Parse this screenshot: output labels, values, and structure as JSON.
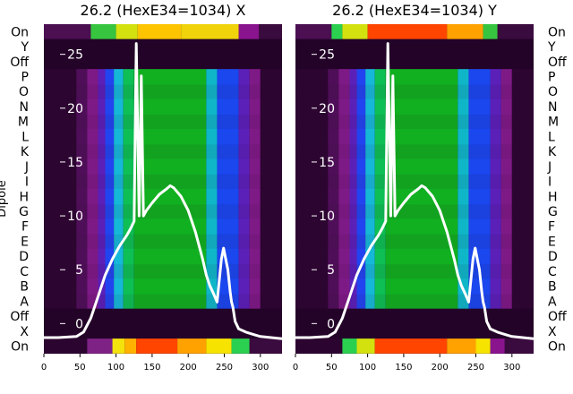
{
  "chart_data": [
    {
      "type": "heatmap",
      "title": "26.2 (HexE34=1034) X",
      "ylabel": "Dipole",
      "row_labels": [
        "On",
        "Y",
        "Off",
        "P",
        "O",
        "N",
        "M",
        "L",
        "K",
        "J",
        "I",
        "H",
        "G",
        "F",
        "E",
        "D",
        "C",
        "B",
        "A",
        "Off",
        "X",
        "On"
      ],
      "x_ticks": [
        0,
        50,
        100,
        150,
        200,
        250,
        300
      ],
      "xlim": [
        0,
        330
      ],
      "overlay_ticks": [
        0,
        5,
        10,
        15,
        20,
        25
      ],
      "overlay_ylim": [
        -2.8,
        27.8
      ],
      "overlay_line": {
        "x": [
          0,
          20,
          45,
          55,
          65,
          75,
          85,
          95,
          105,
          115,
          120,
          125,
          128,
          132,
          135,
          138,
          142,
          150,
          160,
          170,
          175,
          180,
          190,
          200,
          210,
          220,
          225,
          230,
          235,
          240,
          243,
          246,
          249,
          252,
          255,
          258,
          260,
          262,
          265,
          270,
          280,
          290,
          300,
          315,
          330
        ],
        "y": [
          -1.3,
          -1.3,
          -1.2,
          -0.8,
          0.5,
          2.5,
          4.5,
          6,
          7.2,
          8.2,
          8.8,
          9.5,
          26,
          10,
          23,
          10,
          10.5,
          11.2,
          12,
          12.5,
          12.8,
          12.6,
          11.8,
          10.5,
          8.5,
          6,
          4.5,
          3.5,
          2.8,
          2,
          4,
          6,
          7,
          6,
          5,
          3,
          2,
          1.5,
          0.2,
          -0.5,
          -0.8,
          -1,
          -1.2,
          -1.3,
          -1.4
        ]
      },
      "top_bands": [
        [
          0,
          65,
          "#4b0f52"
        ],
        [
          65,
          100,
          "#37c53f"
        ],
        [
          100,
          130,
          "#d3e10f"
        ],
        [
          130,
          190,
          "#ffc400"
        ],
        [
          190,
          270,
          "#f0d30a"
        ],
        [
          270,
          298,
          "#8a148e"
        ],
        [
          298,
          330,
          "#3a0b3e"
        ]
      ],
      "bot_bands": [
        [
          0,
          60,
          "#2b052f"
        ],
        [
          60,
          95,
          "#7e2286"
        ],
        [
          95,
          112,
          "#f4e20c"
        ],
        [
          112,
          128,
          "#ffb300"
        ],
        [
          128,
          185,
          "#ff4500"
        ],
        [
          185,
          225,
          "#ffa200"
        ],
        [
          225,
          260,
          "#f7e300"
        ],
        [
          260,
          285,
          "#2bd050"
        ],
        [
          285,
          330,
          "#3a0b3e"
        ]
      ],
      "mid_bands": [
        [
          0,
          45,
          "#2d0531"
        ],
        [
          45,
          60,
          "#4f0f58"
        ],
        [
          60,
          75,
          "#7e1a86"
        ],
        [
          75,
          85,
          "#5b20b8"
        ],
        [
          85,
          97,
          "#2244f0"
        ],
        [
          97,
          110,
          "#16b8d8"
        ],
        [
          110,
          125,
          "#0dbf54"
        ],
        [
          125,
          225,
          "#10b020"
        ],
        [
          225,
          240,
          "#0fb6c8"
        ],
        [
          240,
          270,
          "#1a47ee"
        ],
        [
          270,
          285,
          "#5b20b8"
        ],
        [
          285,
          300,
          "#7e1a86"
        ],
        [
          300,
          330,
          "#2d0531"
        ]
      ]
    },
    {
      "type": "heatmap",
      "title": "26.2 (HexE34=1034) Y",
      "row_labels": [
        "On",
        "Y",
        "Off",
        "P",
        "O",
        "N",
        "M",
        "L",
        "K",
        "J",
        "I",
        "H",
        "G",
        "F",
        "E",
        "D",
        "C",
        "B",
        "A",
        "Off",
        "X",
        "On"
      ],
      "x_ticks": [
        0,
        50,
        100,
        150,
        200,
        250,
        300
      ],
      "xlim": [
        0,
        330
      ],
      "overlay_ticks": [
        0,
        5,
        10,
        15,
        20,
        25
      ],
      "overlay_ylim": [
        -2.8,
        27.8
      ],
      "overlay_line": {
        "x": [
          0,
          20,
          45,
          55,
          65,
          75,
          85,
          95,
          105,
          115,
          120,
          125,
          128,
          132,
          135,
          138,
          142,
          150,
          160,
          170,
          175,
          180,
          190,
          200,
          210,
          220,
          225,
          230,
          235,
          240,
          243,
          246,
          249,
          252,
          255,
          258,
          260,
          262,
          265,
          270,
          280,
          290,
          300,
          315,
          330
        ],
        "y": [
          -1.3,
          -1.3,
          -1.2,
          -0.8,
          0.5,
          2.5,
          4.5,
          6,
          7.2,
          8.2,
          8.8,
          9.5,
          26,
          10,
          23,
          10,
          10.5,
          11.2,
          12,
          12.5,
          12.8,
          12.6,
          11.8,
          10.5,
          8.5,
          6,
          4.5,
          3.5,
          2.8,
          2,
          4,
          6,
          7,
          6,
          5,
          3,
          2,
          1.5,
          0.2,
          -0.5,
          -0.8,
          -1,
          -1.2,
          -1.3,
          -1.4
        ]
      },
      "top_bands": [
        [
          0,
          50,
          "#4b0f52"
        ],
        [
          50,
          65,
          "#2bd050"
        ],
        [
          65,
          100,
          "#d3e10f"
        ],
        [
          100,
          210,
          "#ff4500"
        ],
        [
          210,
          260,
          "#ffa200"
        ],
        [
          260,
          280,
          "#37c53f"
        ],
        [
          280,
          330,
          "#3a0b3e"
        ]
      ],
      "bot_bands": [
        [
          0,
          65,
          "#2b052f"
        ],
        [
          65,
          85,
          "#2bd050"
        ],
        [
          85,
          110,
          "#d3e10f"
        ],
        [
          110,
          210,
          "#ff4500"
        ],
        [
          210,
          250,
          "#ffa200"
        ],
        [
          250,
          270,
          "#f7e300"
        ],
        [
          270,
          290,
          "#8a148e"
        ],
        [
          290,
          330,
          "#3a0b3e"
        ]
      ],
      "mid_bands": [
        [
          0,
          45,
          "#2d0531"
        ],
        [
          45,
          60,
          "#4f0f58"
        ],
        [
          60,
          75,
          "#7e1a86"
        ],
        [
          75,
          85,
          "#5b20b8"
        ],
        [
          85,
          97,
          "#2244f0"
        ],
        [
          97,
          110,
          "#16b8d8"
        ],
        [
          110,
          125,
          "#0dbf54"
        ],
        [
          125,
          225,
          "#10b020"
        ],
        [
          225,
          240,
          "#0fb6c8"
        ],
        [
          240,
          270,
          "#1a47ee"
        ],
        [
          270,
          285,
          "#5b20b8"
        ],
        [
          285,
          300,
          "#7e1a86"
        ],
        [
          300,
          330,
          "#2d0531"
        ]
      ]
    }
  ]
}
